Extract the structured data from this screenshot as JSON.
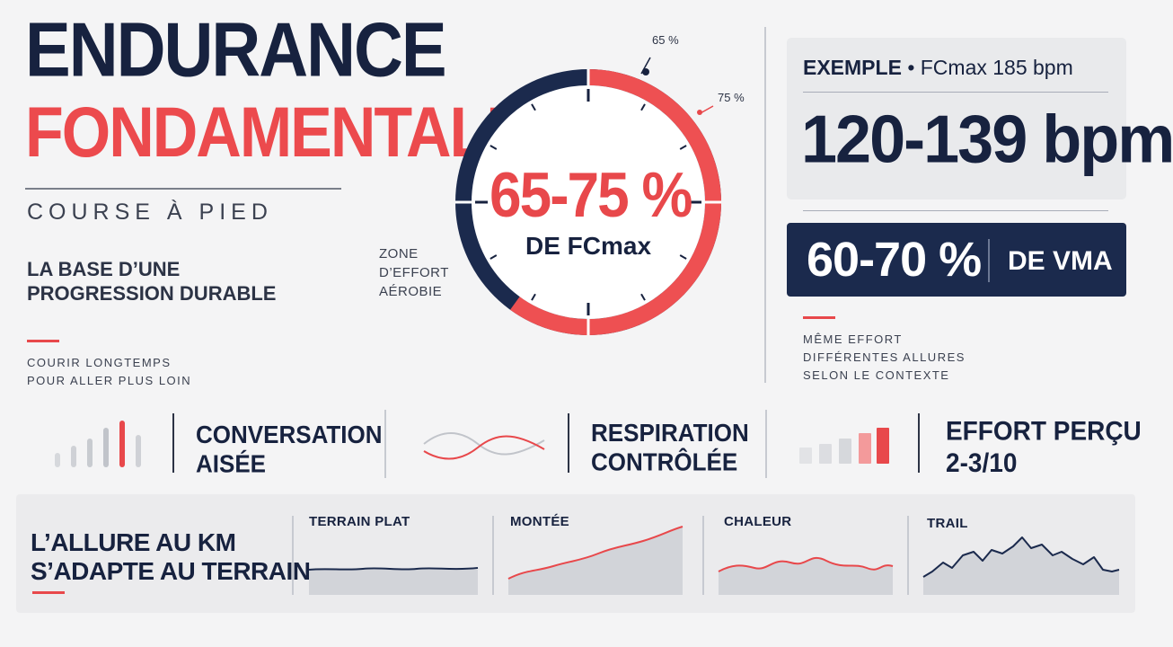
{
  "title": {
    "line1": "ENDURANCE",
    "line2": "FONDAMENTALE",
    "subtitle": "COURSE À PIED"
  },
  "base": {
    "heading": "LA BASE D’UNE PROGRESSION DURABLE",
    "line1": "COURIR LONGTEMPS",
    "line2": "POUR ALLER PLUS LOIN"
  },
  "gauge": {
    "percent": "65-75 %",
    "label": "DE FCmax",
    "zone_line1": "ZONE",
    "zone_line2": "D’EFFORT",
    "zone_line3": "AÉROBIE",
    "low_tick": "65 %",
    "high_tick": "75 %",
    "zone_start_fraction": 0.65,
    "zone_end_fraction": 0.75,
    "colors": {
      "ring": "#1b2a4d",
      "zone": "#ee5052"
    }
  },
  "example": {
    "prefix": "EXEMPLE",
    "fcmax": "• FCmax 185 bpm",
    "bpm": "120-139 bpm"
  },
  "vma": {
    "percent": "60-70 %",
    "label": "DE VMA"
  },
  "notes": {
    "line1": "MÊME EFFORT",
    "line2": "DIFFÉRENTES ALLURES",
    "line3": "SELON LE CONTEXTE"
  },
  "features": [
    {
      "line1": "CONVERSATION",
      "line2": "AISÉE",
      "icon": "bars-icon"
    },
    {
      "line1": "RESPIRATION",
      "line2": "CONTRÔLÉE",
      "icon": "wave-icon"
    },
    {
      "line1": "EFFORT PERÇU",
      "line2": "2-3/10",
      "icon": "effort-bars-icon"
    }
  ],
  "terrain": {
    "heading_line1": "L’ALLURE AU KM",
    "heading_line2": "S’ADAPTE AU TERRAIN",
    "items": [
      {
        "label": "TERRAIN PLAT"
      },
      {
        "label": "MONTÉE"
      },
      {
        "label": "CHALEUR"
      },
      {
        "label": "TRAIL"
      }
    ]
  },
  "colors": {
    "navy": "#17223f",
    "red": "#e8484b",
    "background": "#f4f4f5"
  }
}
